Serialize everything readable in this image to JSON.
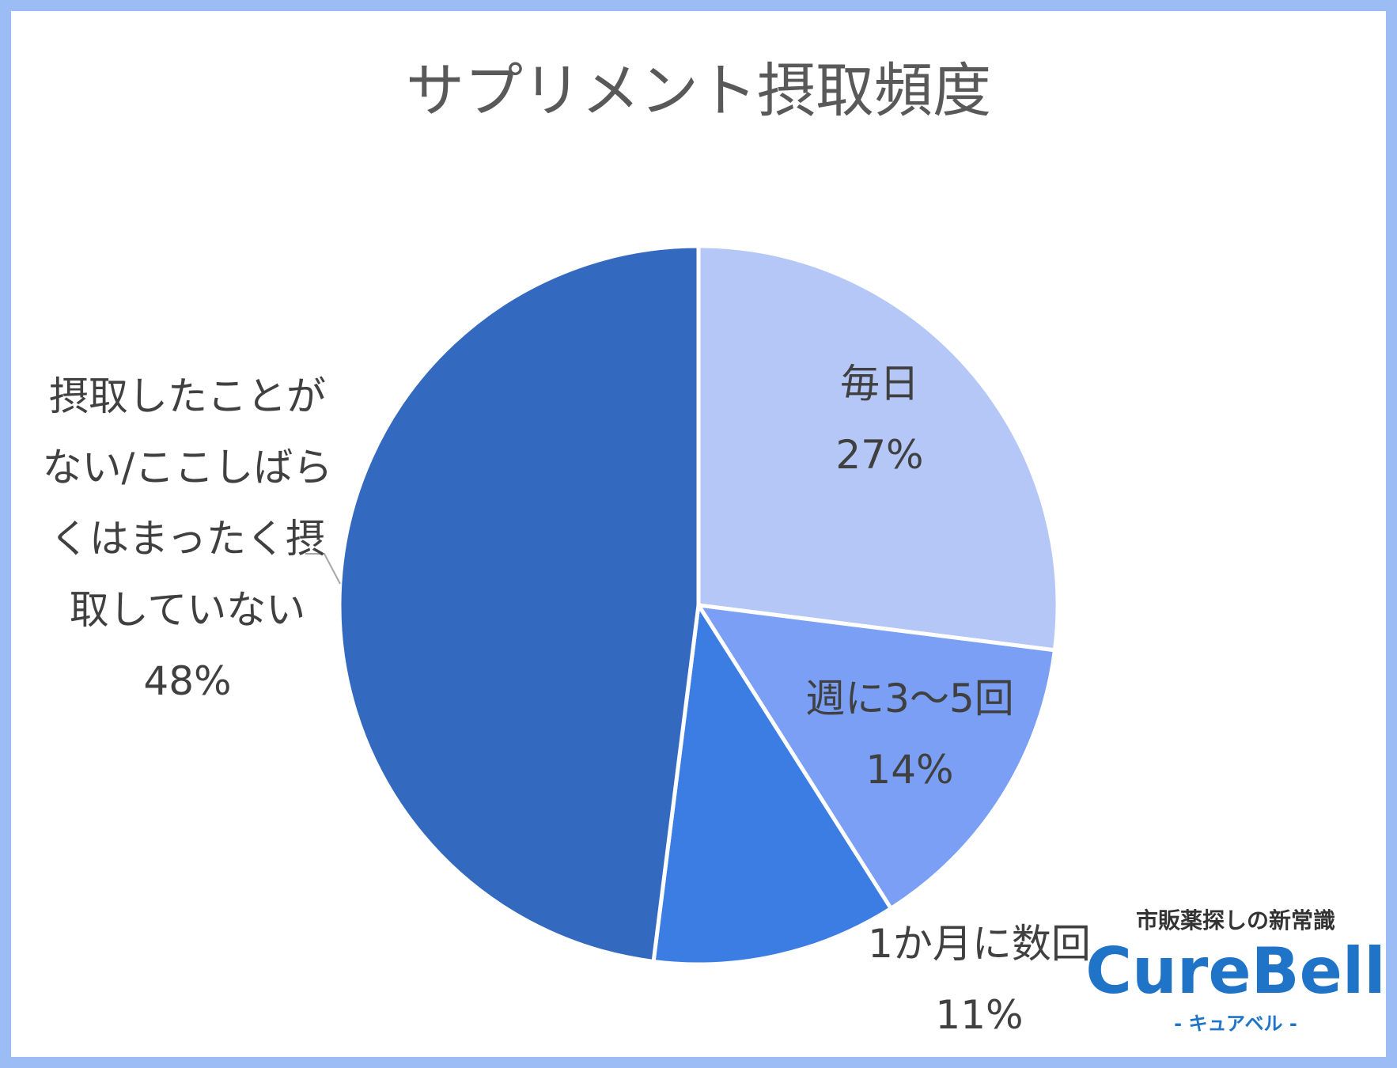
{
  "chart_data": {
    "type": "pie",
    "title": "サプリメント摂取頻度",
    "categories": [
      "毎日",
      "週に3〜5回",
      "1か月に数回",
      "摂取したことがない/ここしばらくはまったく摂取していない"
    ],
    "values": [
      27,
      14,
      11,
      48
    ],
    "value_labels": [
      "27%",
      "14%",
      "11%",
      "48%"
    ],
    "label_lines": [
      [
        "毎日"
      ],
      [
        "週に3〜5回"
      ],
      [
        "1か月に数回"
      ],
      [
        "摂取したことが",
        "ない/ここしばら",
        "くはまったく摂",
        "取していない"
      ]
    ],
    "colors": [
      "#b4c7f7",
      "#7a9ff4",
      "#3c7de3",
      "#3469c0"
    ],
    "start_angle_deg": 0,
    "direction": "clockwise",
    "legend": "none",
    "data_labels": "outside-and-inside with leader line for largest slice"
  },
  "brand": {
    "tagline": "市販薬探しの新常識",
    "logo_text": "CureBell",
    "sub_text": "- キュアベル -"
  }
}
